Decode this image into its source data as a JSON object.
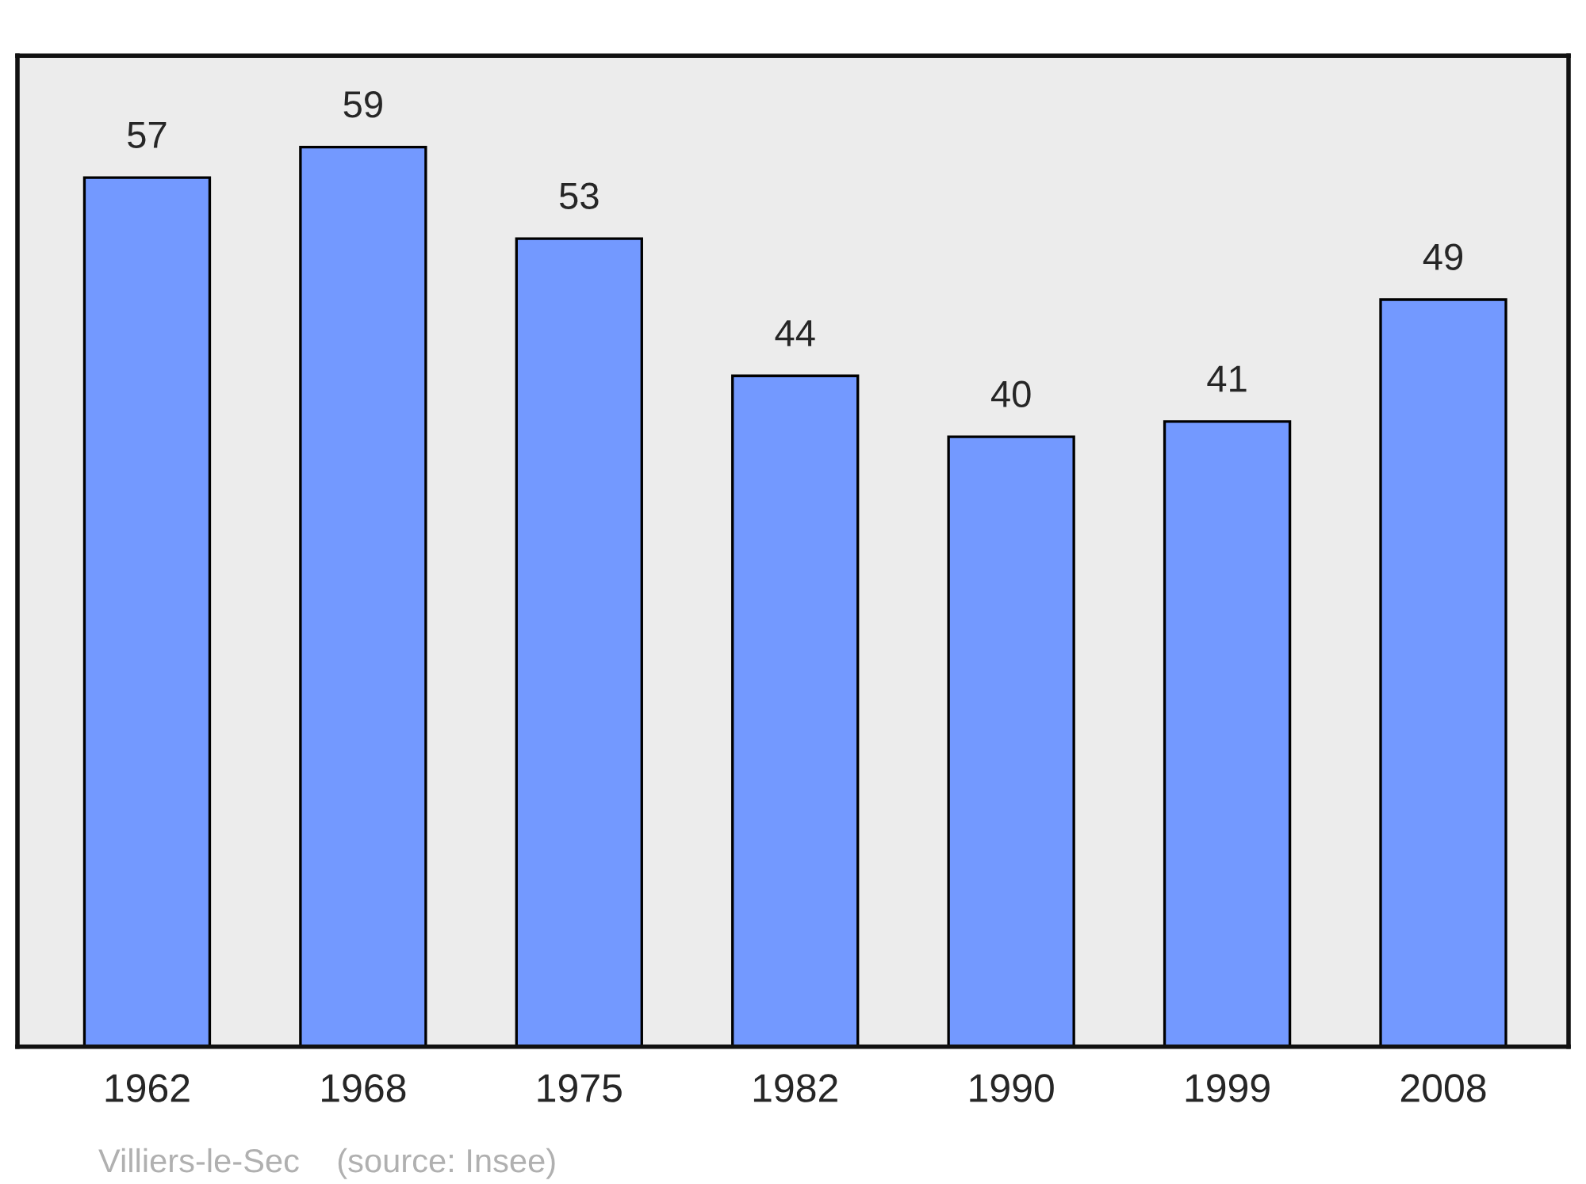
{
  "chart_data": {
    "type": "bar",
    "categories": [
      "1962",
      "1968",
      "1975",
      "1982",
      "1990",
      "1999",
      "2008"
    ],
    "values": [
      57,
      59,
      53,
      44,
      40,
      41,
      49
    ],
    "color": "#7399ff",
    "data_labels": true,
    "ylim": [
      0,
      65
    ],
    "grid": false,
    "legend": false,
    "annotations": [
      "Villiers-le-Sec    (source: Insee)"
    ]
  }
}
